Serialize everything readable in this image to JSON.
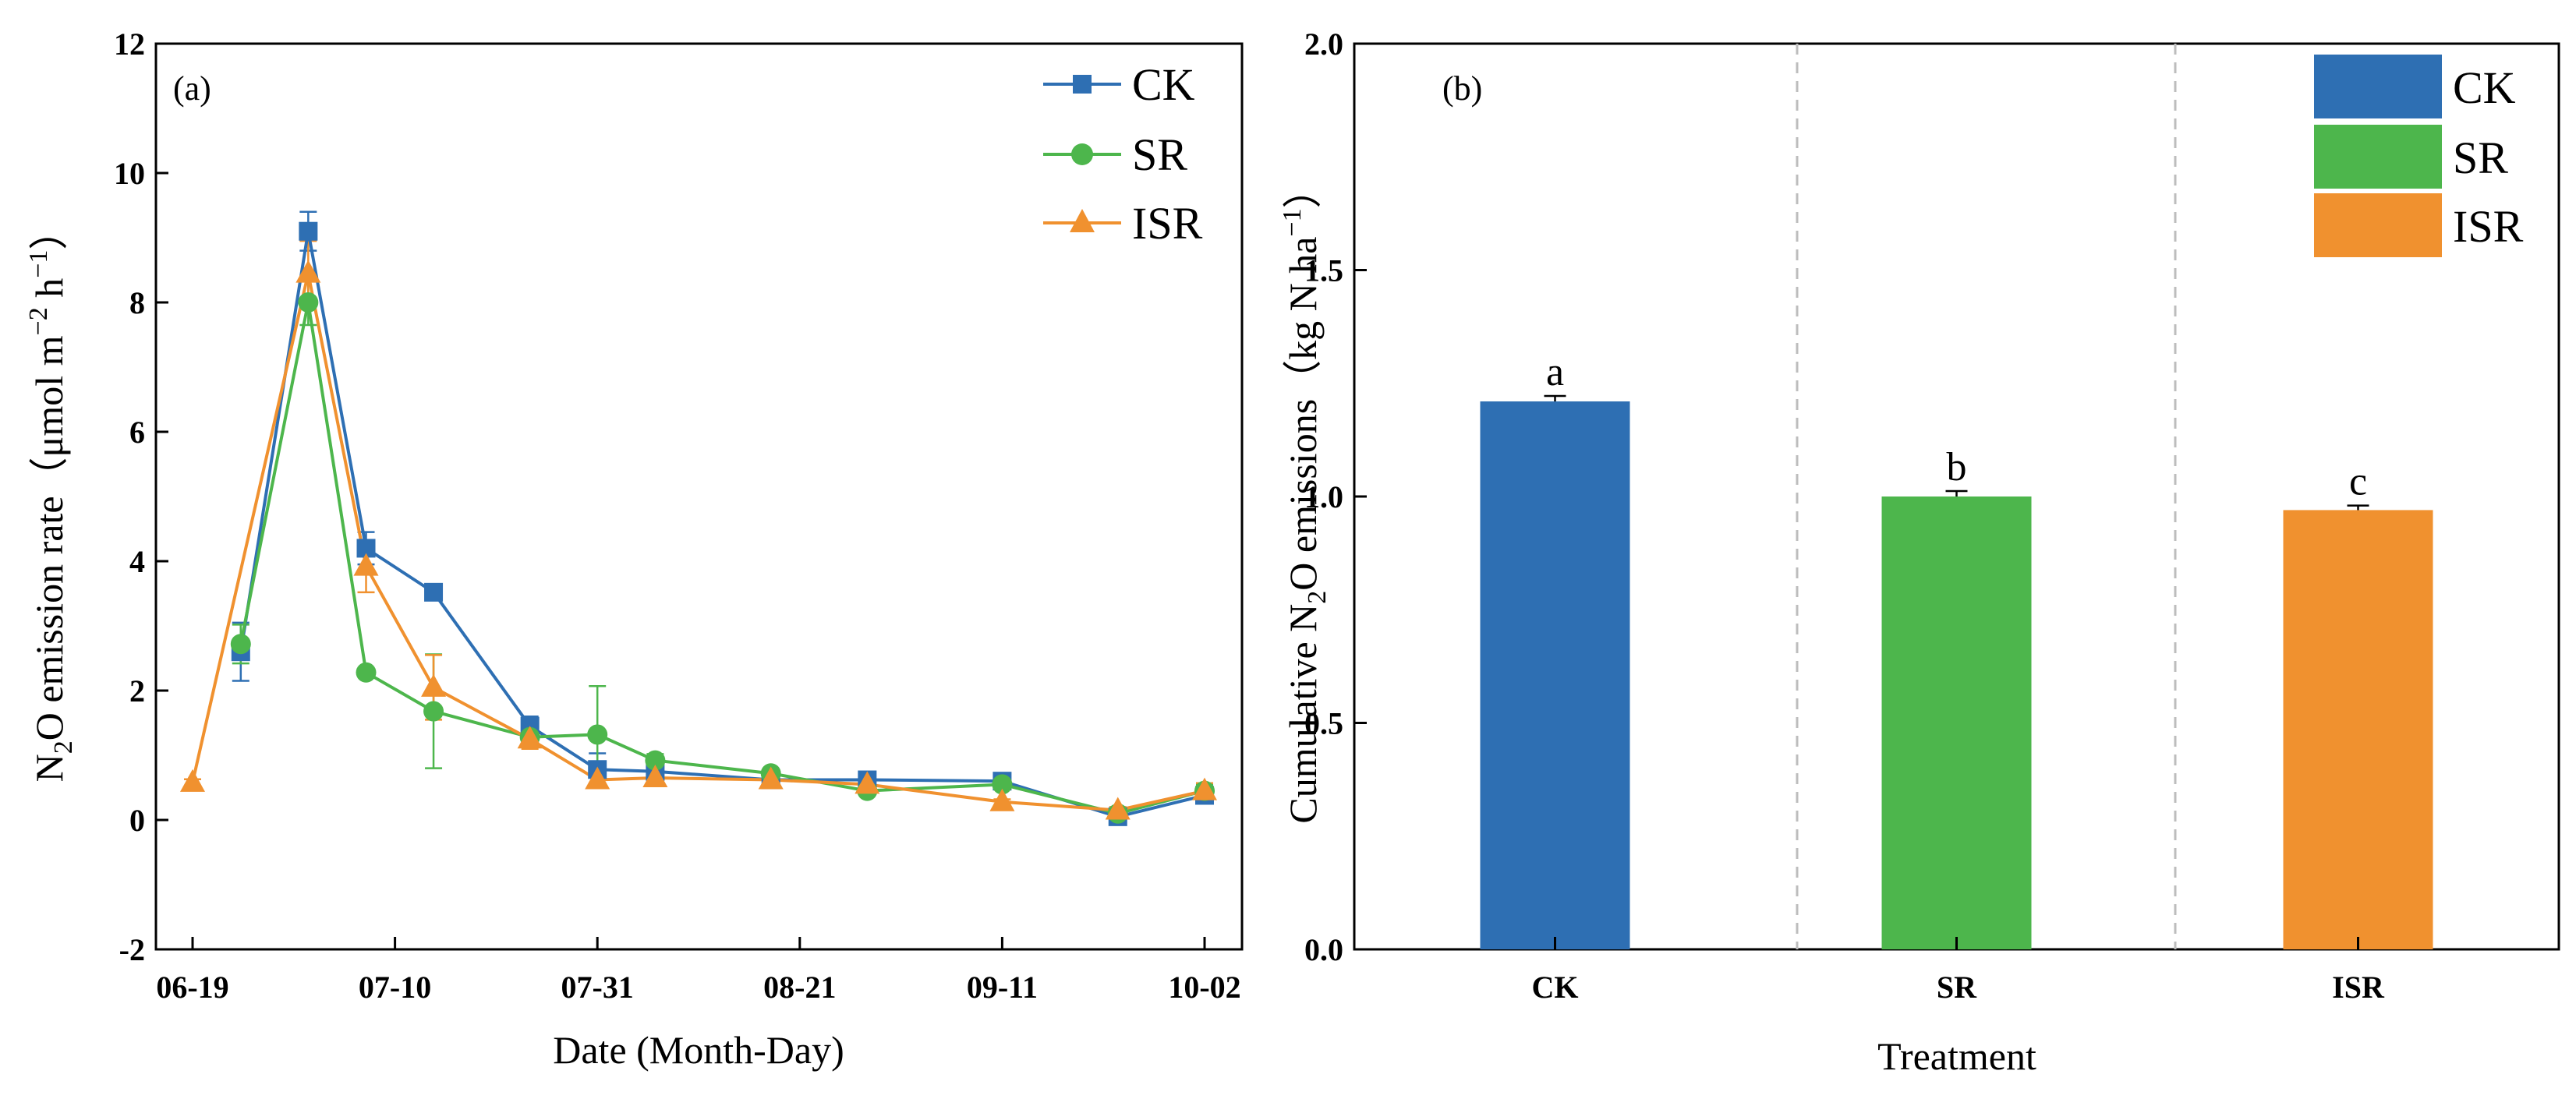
{
  "chart_data": [
    {
      "type": "line",
      "panel_label": "(a)",
      "xlabel": "Date (Month-Day)",
      "ylabel": "N₂O emission rate（μmol m⁻² h⁻¹）",
      "ylabel_parts": {
        "n": "N",
        "sub2": "2",
        "rest": "O emission rate（μmol m",
        "m2": "−2",
        "h": " h",
        "m1": "−1",
        "close": "）"
      },
      "xlim": [
        0,
        105
      ],
      "ylim": [
        -2,
        12
      ],
      "xticks": [
        {
          "pos": 0,
          "label": "06-19"
        },
        {
          "pos": 21,
          "label": "07-10"
        },
        {
          "pos": 42,
          "label": "07-31"
        },
        {
          "pos": 63,
          "label": "08-21"
        },
        {
          "pos": 84,
          "label": "09-11"
        },
        {
          "pos": 105,
          "label": "10-02"
        }
      ],
      "yticks": [
        -2,
        0,
        2,
        4,
        6,
        8,
        10,
        12
      ],
      "legend_position": "top-right",
      "series": [
        {
          "name": "CK",
          "color": "#2e6fb3",
          "marker": "square",
          "points": [
            {
              "x": 5,
              "y": 2.6,
              "err": 0.45
            },
            {
              "x": 12,
              "y": 9.1,
              "err": 0.3
            },
            {
              "x": 18,
              "y": 4.2,
              "err": 0.25
            },
            {
              "x": 25,
              "y": 3.52,
              "err": 0.05
            },
            {
              "x": 35,
              "y": 1.45,
              "err": 0.15
            },
            {
              "x": 42,
              "y": 0.78,
              "err": 0.25
            },
            {
              "x": 48,
              "y": 0.75,
              "err": 0.08
            },
            {
              "x": 60,
              "y": 0.62,
              "err": 0.08
            },
            {
              "x": 70,
              "y": 0.62,
              "err": 0.06
            },
            {
              "x": 84,
              "y": 0.6,
              "err": 0.06
            },
            {
              "x": 96,
              "y": 0.05,
              "err": 0.05
            },
            {
              "x": 105,
              "y": 0.38,
              "err": 0.1
            }
          ]
        },
        {
          "name": "SR",
          "color": "#4db64c",
          "marker": "circle",
          "points": [
            {
              "x": 5,
              "y": 2.72,
              "err": 0.3
            },
            {
              "x": 12,
              "y": 8.0,
              "err": 0.35
            },
            {
              "x": 18,
              "y": 2.28,
              "err": 0.05
            },
            {
              "x": 25,
              "y": 1.68,
              "err": 0.88
            },
            {
              "x": 35,
              "y": 1.28,
              "err": 0.1
            },
            {
              "x": 42,
              "y": 1.32,
              "err": 0.75
            },
            {
              "x": 48,
              "y": 0.92,
              "err": 0.1
            },
            {
              "x": 60,
              "y": 0.72,
              "err": 0.05
            },
            {
              "x": 70,
              "y": 0.45,
              "err": 0.06
            },
            {
              "x": 84,
              "y": 0.55,
              "err": 0.06
            },
            {
              "x": 96,
              "y": 0.1,
              "err": 0.05
            },
            {
              "x": 105,
              "y": 0.45,
              "err": 0.1
            }
          ]
        },
        {
          "name": "ISR",
          "color": "#f0912f",
          "marker": "triangle",
          "points": [
            {
              "x": 0,
              "y": 0.58,
              "err": 0.05
            },
            {
              "x": 12,
              "y": 8.45,
              "err": 0.5
            },
            {
              "x": 18,
              "y": 3.92,
              "err": 0.4
            },
            {
              "x": 25,
              "y": 2.05,
              "err": 0.5
            },
            {
              "x": 35,
              "y": 1.25,
              "err": 0.15
            },
            {
              "x": 42,
              "y": 0.62,
              "err": 0.12
            },
            {
              "x": 48,
              "y": 0.65,
              "err": 0.1
            },
            {
              "x": 60,
              "y": 0.62,
              "err": 0.05
            },
            {
              "x": 70,
              "y": 0.55,
              "err": 0.05
            },
            {
              "x": 84,
              "y": 0.28,
              "err": 0.04
            },
            {
              "x": 96,
              "y": 0.15,
              "err": 0.05
            },
            {
              "x": 105,
              "y": 0.45,
              "err": 0.12
            }
          ]
        }
      ]
    },
    {
      "type": "bar",
      "panel_label": "(b)",
      "xlabel": "Treatment",
      "ylabel_parts": {
        "pre": "Cumulative N",
        "sub2": "2",
        "mid": "O emissions（kg N ha",
        "sup": "−1",
        "close": "）"
      },
      "ylim": [
        0,
        2.0
      ],
      "yticks": [
        "0.0",
        "0.5",
        "1.0",
        "1.5",
        "2.0"
      ],
      "legend_position": "top-right",
      "categories": [
        "CK",
        "SR",
        "ISR"
      ],
      "values": [
        1.21,
        1.0,
        0.97
      ],
      "errors": [
        0.012,
        0.012,
        0.01
      ],
      "significance": [
        "a",
        "b",
        "c"
      ],
      "colors": [
        "#2e6fb3",
        "#4db64c",
        "#f0912f"
      ]
    }
  ]
}
